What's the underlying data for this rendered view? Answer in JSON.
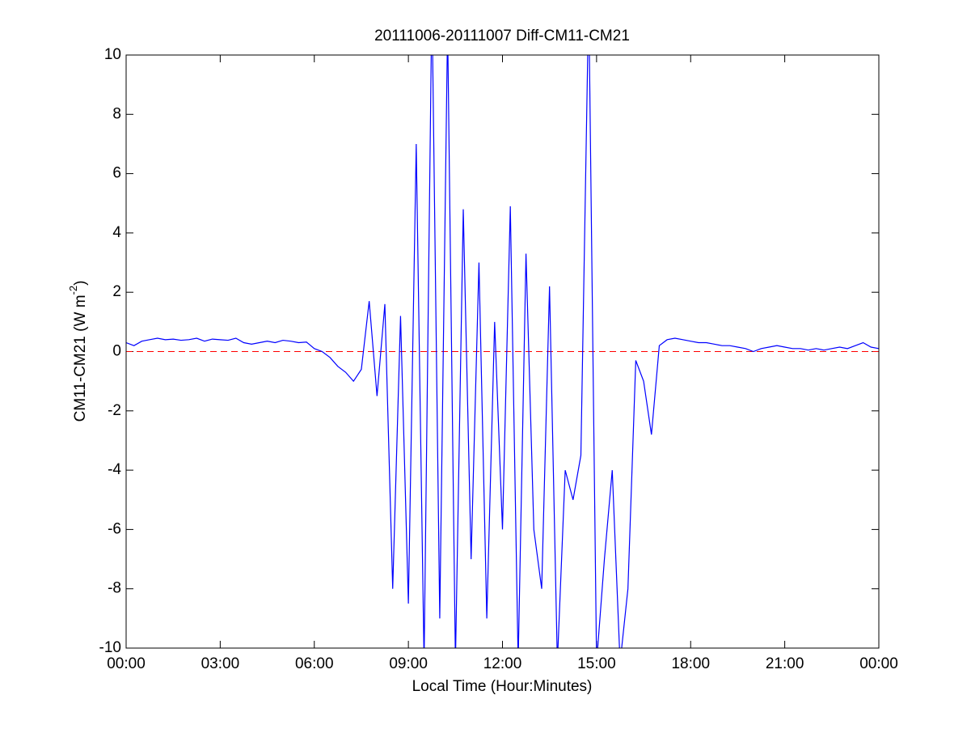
{
  "chart_data": {
    "type": "line",
    "title": "20111006-20111007 Diff-CM11-CM21",
    "xlabel": "Local Time (Hour:Minutes)",
    "ylabel": {
      "text": "CM11-CM21 (W m",
      "superscript": "-2",
      "suffix": ")"
    },
    "x": [
      0,
      0.25,
      0.5,
      0.75,
      1,
      1.25,
      1.5,
      1.75,
      2,
      2.25,
      2.5,
      2.75,
      3,
      3.25,
      3.5,
      3.75,
      4,
      4.25,
      4.5,
      4.75,
      5,
      5.25,
      5.5,
      5.75,
      6,
      6.25,
      6.5,
      6.75,
      7,
      7.25,
      7.5,
      7.75,
      8,
      8.25,
      8.5,
      8.75,
      9,
      9.25,
      9.5,
      9.75,
      10,
      10.25,
      10.5,
      10.75,
      11,
      11.25,
      11.5,
      11.75,
      12,
      12.25,
      12.5,
      12.75,
      13,
      13.25,
      13.5,
      13.75,
      14,
      14.25,
      14.5,
      14.75,
      15,
      15.25,
      15.5,
      15.75,
      16,
      16.25,
      16.5,
      16.75,
      17,
      17.25,
      17.5,
      17.75,
      18,
      18.25,
      18.5,
      18.75,
      19,
      19.25,
      19.5,
      19.75,
      20,
      20.25,
      20.5,
      20.75,
      21,
      21.25,
      21.5,
      21.75,
      22,
      22.25,
      22.5,
      22.75,
      23,
      23.25,
      23.5,
      23.75,
      24
    ],
    "series": [
      {
        "name": "Diff",
        "color": "#0000ff",
        "values": [
          0.3,
          0.2,
          0.35,
          0.4,
          0.45,
          0.4,
          0.42,
          0.38,
          0.4,
          0.45,
          0.35,
          0.42,
          0.4,
          0.38,
          0.45,
          0.3,
          0.25,
          0.3,
          0.35,
          0.3,
          0.38,
          0.35,
          0.3,
          0.32,
          0.1,
          0,
          -0.2,
          -0.5,
          -0.7,
          -1.0,
          -0.6,
          1.7,
          -1.5,
          1.6,
          -8,
          1.2,
          -8.5,
          7,
          -10.5,
          12,
          -9,
          11,
          -10.5,
          4.8,
          -7,
          3,
          -9,
          1,
          -6,
          4.9,
          -10.5,
          3.3,
          -6,
          -8,
          2.2,
          -10.5,
          -4,
          -5,
          -3.5,
          12,
          -10.5,
          -7,
          -4,
          -10.5,
          -8,
          -0.3,
          -1,
          -2.8,
          0.2,
          0.4,
          0.45,
          0.4,
          0.35,
          0.3,
          0.3,
          0.25,
          0.2,
          0.2,
          0.15,
          0.1,
          0,
          0.1,
          0.15,
          0.2,
          0.15,
          0.1,
          0.1,
          0.05,
          0.1,
          0.05,
          0.1,
          0.15,
          0.1,
          0.2,
          0.3,
          0.15,
          0.1
        ]
      }
    ],
    "reference_line": {
      "value": 0,
      "color": "#ff0000"
    },
    "xlim": [
      0,
      24
    ],
    "xticks": [
      {
        "value": 0,
        "label": "00:00"
      },
      {
        "value": 3,
        "label": "03:00"
      },
      {
        "value": 6,
        "label": "06:00"
      },
      {
        "value": 9,
        "label": "09:00"
      },
      {
        "value": 12,
        "label": "12:00"
      },
      {
        "value": 15,
        "label": "15:00"
      },
      {
        "value": 18,
        "label": "18:00"
      },
      {
        "value": 21,
        "label": "21:00"
      },
      {
        "value": 24,
        "label": "00:00"
      }
    ],
    "ylim": [
      -10,
      10
    ],
    "yticks": [
      -10,
      -8,
      -6,
      -4,
      -2,
      0,
      2,
      4,
      6,
      8,
      10
    ],
    "grid": false
  }
}
